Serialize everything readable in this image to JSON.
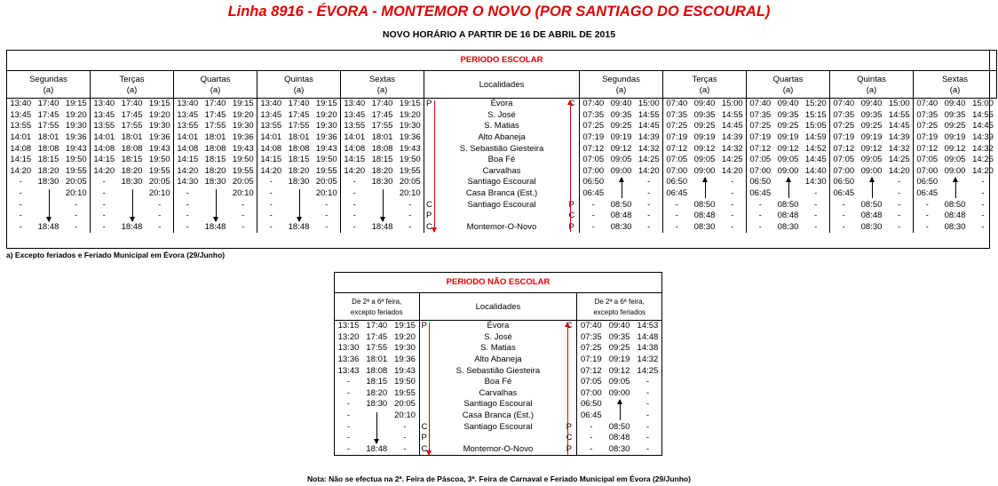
{
  "title": "Linha 8916 - ÉVORA - MONTEMOR O NOVO (POR SANTIAGO DO ESCOURAL)",
  "subtitle": "NOVO HORÁRIO A PARTIR DE 16 DE ABRIL DE 2015",
  "escolar": {
    "band": "PERIODO ESCOLAR",
    "days": [
      "Segundas",
      "Terças",
      "Quartas",
      "Quintas",
      "Sextas"
    ],
    "note_mark": "(a)",
    "localidades_label": "Localidades",
    "stops": [
      "Évora",
      "S. José",
      "S. Matias",
      "Alto Abaneja",
      "S. Sebastião Giesteira",
      "Boa Fé",
      "Carvalhas",
      "Santiago Escoural",
      "Casa Branca (Est.)",
      "Santiago Escoural",
      "",
      "Montemor-O-Novo"
    ],
    "left_codes": [
      "P",
      "",
      "",
      "",
      "",
      "",
      "",
      "",
      "",
      "C",
      "P",
      "C"
    ],
    "right_codes": [
      "C",
      "",
      "",
      "",
      "",
      "",
      "",
      "",
      "",
      "P",
      "C",
      "P"
    ],
    "outbound": [
      [
        "13:40",
        "17:40",
        "19:15"
      ],
      [
        "13:45",
        "17:45",
        "19:20"
      ],
      [
        "13:55",
        "17:55",
        "19:30"
      ],
      [
        "14:01",
        "18:01",
        "19:36"
      ],
      [
        "14:08",
        "18:08",
        "19:43"
      ],
      [
        "14:15",
        "18:15",
        "19:50"
      ],
      [
        "14:20",
        "18:20",
        "19:55"
      ],
      [
        "-",
        "18:30",
        "20:05"
      ],
      [
        "-",
        "",
        "20:10"
      ],
      [
        "-",
        "",
        "-"
      ],
      [
        "-",
        "",
        "-"
      ],
      [
        "-",
        "18:48",
        "-"
      ]
    ],
    "outbound_rows_by_day": [
      null,
      null,
      [
        [
          "13:40",
          "17:40",
          "19:15"
        ],
        [
          "13:45",
          "17:45",
          "19:20"
        ],
        [
          "13:55",
          "17:55",
          "19:30"
        ],
        [
          "14:01",
          "18:01",
          "19:36"
        ],
        [
          "14:08",
          "18:08",
          "19:43"
        ],
        [
          "14:15",
          "18:15",
          "19:50"
        ],
        [
          "14:20",
          "18:20",
          "19:55"
        ],
        [
          "14:30",
          "18:30",
          "20:05"
        ],
        [
          "-",
          "",
          "20:10"
        ],
        [
          "-",
          "",
          "-"
        ],
        [
          "-",
          "",
          "-"
        ],
        [
          "-",
          "18:48",
          "-"
        ]
      ],
      null,
      null
    ],
    "inbound": [
      [
        "07:40",
        "09:40",
        "15:00"
      ],
      [
        "07:35",
        "09:35",
        "14:55"
      ],
      [
        "07:25",
        "09:25",
        "14:45"
      ],
      [
        "07:19",
        "09:19",
        "14:39"
      ],
      [
        "07:12",
        "09:12",
        "14:32"
      ],
      [
        "07:05",
        "09:05",
        "14:25"
      ],
      [
        "07:00",
        "09:00",
        "14:20"
      ],
      [
        "06:50",
        "",
        "-"
      ],
      [
        "06:45",
        "",
        "-"
      ],
      [
        "-",
        "08:50",
        "-"
      ],
      [
        "-",
        "08:48",
        "-"
      ],
      [
        "-",
        "08:30",
        "-"
      ]
    ],
    "inbound_quartas": [
      [
        "07:40",
        "09:40",
        "15:20"
      ],
      [
        "07:35",
        "09:35",
        "15:15"
      ],
      [
        "07:25",
        "09:25",
        "15:05"
      ],
      [
        "07:19",
        "09:19",
        "14:59"
      ],
      [
        "07:12",
        "09:12",
        "14:52"
      ],
      [
        "07:05",
        "09:05",
        "14:45"
      ],
      [
        "07:00",
        "09:00",
        "14:40"
      ],
      [
        "06:50",
        "",
        "14:30"
      ],
      [
        "06:45",
        "",
        "-"
      ],
      [
        "-",
        "08:50",
        "-"
      ],
      [
        "-",
        "08:48",
        "-"
      ],
      [
        "-",
        "08:30",
        "-"
      ]
    ],
    "footnote": "a) Excepto feriados e Feriado Municipal em Évora (29/Junho)"
  },
  "nao_escolar": {
    "band": "PERIODO NÃO ESCOLAR",
    "days_label_1": "De 2ª a 6ª feira,",
    "days_label_2": "excepto feriados",
    "localidades_label": "Localidades",
    "outbound": [
      [
        "13:15",
        "17:40",
        "19:15"
      ],
      [
        "13:20",
        "17:45",
        "19:20"
      ],
      [
        "13:30",
        "17:55",
        "19:30"
      ],
      [
        "13:36",
        "18:01",
        "19:36"
      ],
      [
        "13:43",
        "18:08",
        "19:43"
      ],
      [
        "-",
        "18:15",
        "19:50"
      ],
      [
        "-",
        "18:20",
        "19:55"
      ],
      [
        "-",
        "18:30",
        "20:05"
      ],
      [
        "-",
        "",
        "20:10"
      ],
      [
        "-",
        "",
        "-"
      ],
      [
        "-",
        "",
        "-"
      ],
      [
        "-",
        "18:48",
        "-"
      ]
    ],
    "inbound": [
      [
        "07:40",
        "09:40",
        "14:53"
      ],
      [
        "07:35",
        "09:35",
        "14:48"
      ],
      [
        "07:25",
        "09:25",
        "14:38"
      ],
      [
        "07:19",
        "09:19",
        "14:32"
      ],
      [
        "07:12",
        "09:12",
        "14:25"
      ],
      [
        "07:05",
        "09:05",
        "-"
      ],
      [
        "07:00",
        "09:00",
        "-"
      ],
      [
        "06:50",
        "",
        "-"
      ],
      [
        "06:45",
        "",
        "-"
      ],
      [
        "-",
        "08:50",
        "-"
      ],
      [
        "-",
        "08:48",
        "-"
      ],
      [
        "-",
        "08:30",
        "-"
      ]
    ],
    "note": "Nota: Não se efectua na 2ª. Feira de Páscoa, 3ª. Feira de Carnaval e Feriado Municipal em Évora (29/Junho)"
  }
}
